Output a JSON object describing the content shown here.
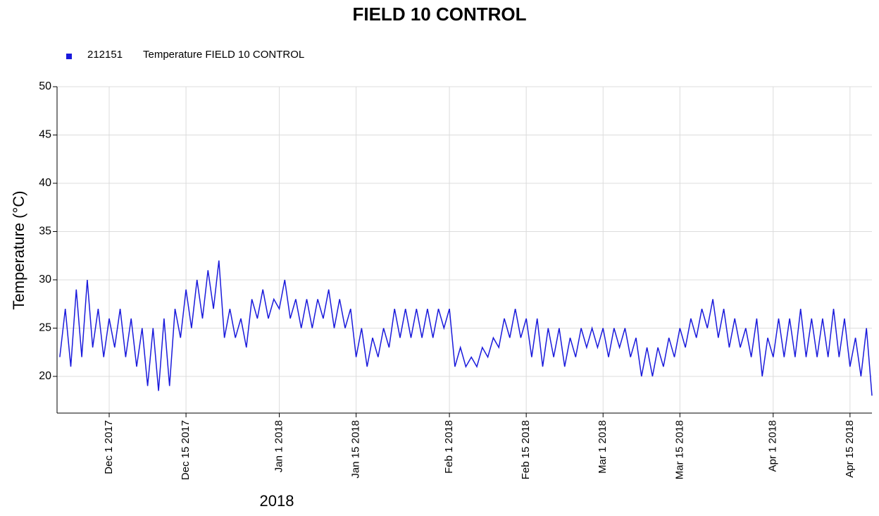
{
  "chart_data": {
    "type": "line",
    "title": "FIELD 10 CONTROL",
    "y_label": "Temperature (°C)",
    "x_label": "2018",
    "legend_id": "212151",
    "series": [
      {
        "name": "Temperature FIELD 10 CONTROL",
        "color": "#1a1adc",
        "values": [
          22,
          27,
          21,
          29,
          22,
          30,
          23,
          27,
          22,
          26,
          23,
          27,
          22,
          26,
          21,
          25,
          19,
          25,
          18.5,
          26,
          19,
          27,
          24,
          29,
          25,
          30,
          26,
          31,
          27,
          32,
          24,
          27,
          24,
          26,
          23,
          28,
          26,
          29,
          26,
          28,
          27,
          30,
          26,
          28,
          25,
          28,
          25,
          28,
          26,
          29,
          25,
          28,
          25,
          27,
          22,
          25,
          21,
          24,
          22,
          25,
          23,
          27,
          24,
          27,
          24,
          27,
          24,
          27,
          24,
          27,
          25,
          27,
          21,
          23,
          21,
          22,
          21,
          23,
          22,
          24,
          23,
          26,
          24,
          27,
          24,
          26,
          22,
          26,
          21,
          25,
          22,
          25,
          21,
          24,
          22,
          25,
          23,
          25,
          23,
          25,
          22,
          25,
          23,
          25,
          22,
          24,
          20,
          23,
          20,
          23,
          21,
          24,
          22,
          25,
          23,
          26,
          24,
          27,
          25,
          28,
          24,
          27,
          23,
          26,
          23,
          25,
          22,
          26,
          20,
          24,
          22,
          26,
          22,
          26,
          22,
          27,
          22,
          26,
          22,
          26,
          22,
          27,
          22,
          26,
          21,
          24,
          20,
          25,
          18
        ]
      }
    ],
    "x": [
      -9,
      -8,
      -7,
      -6,
      -5,
      -4,
      -3,
      -2,
      -1,
      0,
      1,
      2,
      3,
      4,
      5,
      6,
      7,
      8,
      9,
      10,
      11,
      12,
      13,
      14,
      15,
      16,
      17,
      18,
      19,
      20,
      21,
      22,
      23,
      24,
      25,
      26,
      27,
      28,
      29,
      30,
      31,
      32,
      33,
      34,
      35,
      36,
      37,
      38,
      39,
      40,
      41,
      42,
      43,
      44,
      45,
      46,
      47,
      48,
      49,
      50,
      51,
      52,
      53,
      54,
      55,
      56,
      57,
      58,
      59,
      60,
      61,
      62,
      63,
      64,
      65,
      66,
      67,
      68,
      69,
      70,
      71,
      72,
      73,
      74,
      75,
      76,
      77,
      78,
      79,
      80,
      81,
      82,
      83,
      84,
      85,
      86,
      87,
      88,
      89,
      90,
      91,
      92,
      93,
      94,
      95,
      96,
      97,
      98,
      99,
      100,
      101,
      102,
      103,
      104,
      105,
      106,
      107,
      108,
      109,
      110,
      111,
      112,
      113,
      114,
      115,
      116,
      117,
      118,
      119,
      120,
      121,
      122,
      123,
      124,
      125,
      126,
      127,
      128,
      129,
      130,
      131,
      132,
      133,
      134,
      135,
      136,
      137,
      138,
      139
    ],
    "xlim": [
      -9.5,
      139
    ],
    "xticks": [
      {
        "value": 0,
        "label": "Dec 1 2017"
      },
      {
        "value": 14,
        "label": "Dec 15 2017"
      },
      {
        "value": 31,
        "label": "Jan 1 2018"
      },
      {
        "value": 45,
        "label": "Jan 15 2018"
      },
      {
        "value": 62,
        "label": "Feb 1 2018"
      },
      {
        "value": 76,
        "label": "Feb 15 2018"
      },
      {
        "value": 90,
        "label": "Mar 1 2018"
      },
      {
        "value": 104,
        "label": "Mar 15 2018"
      },
      {
        "value": 121,
        "label": "Apr 1 2018"
      },
      {
        "value": 135,
        "label": "Apr 15 2018"
      }
    ],
    "ylim": [
      16.2,
      50
    ],
    "yticks": [
      20,
      25,
      30,
      35,
      40,
      45,
      50
    ],
    "grid": true
  }
}
